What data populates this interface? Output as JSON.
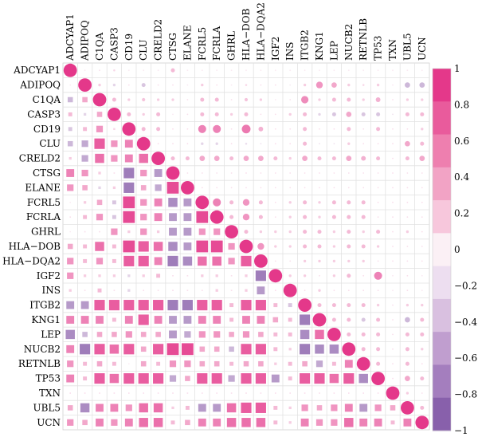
{
  "chart_data": {
    "type": "heatmap",
    "variant": "correlation-matrix",
    "upper_marker": "circle",
    "lower_marker": "square",
    "variables": [
      "ADCYAP1",
      "ADIPOQ",
      "C1QA",
      "CASP3",
      "CD19",
      "CLU",
      "CRELD2",
      "CTSG",
      "ELANE",
      "FCRL5",
      "FCRLA",
      "GHRL",
      "HLA−DOB",
      "HLA−DQA2",
      "IGF2",
      "INS",
      "ITGB2",
      "KNG1",
      "LEP",
      "NUCB2",
      "RETNLB",
      "TP53",
      "TXN",
      "UBL5",
      "UCN"
    ],
    "colorbar": {
      "min": -1,
      "max": 1,
      "ticks": [
        "1",
        "0.8",
        "0.6",
        "0.4",
        "0.2",
        "0",
        "−0.2",
        "−0.4",
        "−0.6",
        "−0.8",
        "−1"
      ],
      "tick_values": [
        1,
        0.8,
        0.6,
        0.4,
        0.2,
        0,
        -0.2,
        -0.4,
        -0.6,
        -0.8,
        -1
      ],
      "bands": [
        "#e4388a",
        "#e95b9c",
        "#ee7faf",
        "#f2a3c5",
        "#f7c7dc",
        "#fbf0f5",
        "#eddef0",
        "#d9c0e0",
        "#c09ecf",
        "#a47ebe",
        "#8860ab"
      ],
      "position": "right"
    },
    "matrix": [
      [
        1,
        0.05,
        0.1,
        0.15,
        0.05,
        0.05,
        0.05,
        0.3,
        0.05,
        0.05,
        0.05,
        0.05,
        0.05,
        0.05,
        0.05,
        0.05,
        0.05,
        0.05,
        0.05,
        0.05,
        0.05,
        0.05,
        0.05,
        0.05,
        0.05
      ],
      [
        0.05,
        1,
        0.2,
        -0.2,
        0.1,
        -0.3,
        0.1,
        0.1,
        0.05,
        0.2,
        0.1,
        0.05,
        0.15,
        0.1,
        0.1,
        -0.05,
        0.2,
        0.5,
        0.4,
        0.2,
        0.15,
        0.2,
        0.05,
        -0.4,
        -0.4
      ],
      [
        -0.4,
        0.4,
        1,
        0.3,
        0.2,
        0.25,
        0.2,
        0.2,
        0.1,
        0.3,
        0.3,
        0.1,
        0.25,
        0.2,
        0.05,
        0.1,
        0.55,
        0.2,
        0.3,
        0.3,
        0.2,
        0.35,
        0.1,
        0.2,
        0.2
      ],
      [
        0.3,
        -0.2,
        0.4,
        1,
        0.3,
        0.2,
        0.3,
        0.05,
        0.1,
        0.3,
        0.3,
        0.2,
        0.3,
        0.1,
        0.1,
        0.2,
        0.3,
        -0.2,
        -0.3,
        0.4,
        -0.3,
        -0.3,
        -0.1,
        0.3,
        0.3
      ],
      [
        -0.3,
        0.3,
        0.5,
        0.15,
        1,
        0.3,
        0.3,
        0.1,
        0.1,
        0.6,
        0.6,
        0.1,
        0.65,
        0.35,
        0.1,
        0.1,
        0.3,
        0.1,
        0.1,
        0.3,
        0.1,
        0.3,
        0.1,
        0.1,
        0.2
      ],
      [
        -0.4,
        -0.5,
        0.8,
        0.5,
        0.6,
        1,
        0.1,
        0.1,
        0.1,
        -0.2,
        -0.2,
        0.1,
        -0.15,
        -0.1,
        0.1,
        0.1,
        0.3,
        -0.1,
        -0.1,
        0.2,
        0.1,
        0.1,
        0.1,
        0.4,
        0.3
      ],
      [
        0.2,
        -0.5,
        0.7,
        0.5,
        0.6,
        0.7,
        1,
        0.3,
        0.3,
        0.4,
        0.4,
        0.3,
        0.4,
        0.4,
        0.3,
        0.2,
        0.4,
        0.3,
        0.3,
        0.4,
        0.35,
        0.3,
        0.1,
        0.3,
        0.4
      ],
      [
        0.6,
        0.5,
        0.2,
        0.1,
        -0.8,
        0.5,
        -0.6,
        1,
        0.1,
        0.1,
        0.1,
        0.1,
        0.1,
        0.1,
        0.1,
        0.1,
        0.1,
        0.1,
        0.1,
        0.1,
        0.1,
        0.1,
        0.1,
        0.1,
        0.1
      ],
      [
        0.5,
        0.4,
        -0.2,
        0.2,
        -0.8,
        0.4,
        -0.5,
        0.9,
        1,
        0.1,
        0.1,
        0.1,
        0.1,
        0.1,
        0.1,
        0.1,
        0.1,
        0.1,
        0.1,
        0.1,
        0.1,
        0.1,
        0.1,
        0.1,
        0.1
      ],
      [
        0.05,
        0.2,
        0.4,
        -0.3,
        0.9,
        0.5,
        0.6,
        -0.7,
        -0.6,
        1,
        0.6,
        0.3,
        0.5,
        0.3,
        0.1,
        0.2,
        0.3,
        0.2,
        0.3,
        0.3,
        0.3,
        0.1,
        0.1,
        0.1,
        0.1
      ],
      [
        0.1,
        0.3,
        0.5,
        -0.3,
        0.9,
        0.5,
        0.6,
        -0.6,
        -0.6,
        0.9,
        1,
        0.3,
        0.5,
        0.3,
        0.1,
        0.2,
        0.3,
        0.2,
        0.3,
        0.3,
        0.3,
        0.1,
        0.1,
        0.1,
        0.1
      ],
      [
        0.05,
        0.1,
        0.1,
        0.5,
        0.2,
        0.5,
        0.2,
        -0.6,
        -0.6,
        0.5,
        0.5,
        1,
        0.3,
        0.2,
        0.2,
        0.2,
        0.3,
        0.3,
        0.2,
        0.3,
        0.2,
        0.3,
        0.1,
        0.2,
        0.1
      ],
      [
        0.4,
        0.3,
        0.7,
        0.3,
        0.9,
        0.8,
        0.7,
        -0.7,
        -0.6,
        0.9,
        0.9,
        0.5,
        1,
        0.5,
        0.2,
        0.2,
        0.3,
        0.3,
        0.2,
        0.3,
        0.3,
        0.2,
        0.1,
        0.1,
        0.1
      ],
      [
        0.5,
        0.3,
        0.5,
        0.3,
        0.8,
        0.8,
        0.6,
        -0.8,
        -0.7,
        0.7,
        0.7,
        0.5,
        0.8,
        1,
        0.1,
        0.1,
        0.2,
        0.2,
        0.2,
        0.2,
        0.2,
        0.1,
        0.1,
        0.1,
        0.1
      ],
      [
        0.5,
        0.2,
        0.2,
        0.2,
        -0.2,
        0.2,
        0.3,
        0.1,
        0.1,
        0.2,
        0.2,
        0.1,
        0.2,
        -0.8,
        1,
        0.2,
        0.2,
        0.1,
        0.2,
        0.3,
        0.1,
        0.6,
        0.05,
        0.1,
        0.05
      ],
      [
        0.2,
        0.1,
        0.3,
        0.1,
        -0.2,
        0.1,
        0.1,
        0.1,
        0.1,
        0.1,
        0.2,
        0.1,
        0.2,
        -0.6,
        0.1,
        1,
        0.1,
        0.2,
        0.1,
        0.1,
        0.1,
        0.1,
        0.05,
        0.1,
        0.05
      ],
      [
        -0.6,
        -0.6,
        0.8,
        0.8,
        0.8,
        0.8,
        0.8,
        -0.8,
        -0.8,
        0.8,
        0.8,
        0.3,
        0.8,
        0.8,
        0.3,
        -0.3,
        1,
        0.3,
        0.3,
        0.3,
        0.3,
        0.2,
        0.1,
        0.2,
        0.2
      ],
      [
        0.6,
        0.6,
        0.6,
        0.3,
        0.6,
        0.8,
        0.6,
        -0.6,
        -0.6,
        0.6,
        0.6,
        0.3,
        0.6,
        0.6,
        0.4,
        0.3,
        -0.8,
        1,
        0.3,
        0.3,
        -0.3,
        0.3,
        0.1,
        -0.4,
        0.3
      ],
      [
        -0.7,
        -0.4,
        0.4,
        0.4,
        0.5,
        0.4,
        0.4,
        -0.6,
        -0.5,
        0.5,
        0.5,
        0.4,
        0.5,
        0.4,
        0.3,
        0.3,
        -0.7,
        0.7,
        1,
        0.3,
        0.3,
        0.3,
        0.1,
        0.3,
        0.3
      ],
      [
        0.6,
        -0.8,
        0.8,
        0.7,
        0.8,
        0.4,
        0.8,
        0.9,
        0.9,
        0.4,
        0.4,
        -0.4,
        0.8,
        0.8,
        0.3,
        0.2,
        -0.8,
        -0.7,
        -0.7,
        1,
        0.3,
        0.3,
        0.1,
        0.3,
        0.2
      ],
      [
        0.5,
        0.3,
        0.4,
        0.3,
        0.05,
        0.4,
        0.3,
        0.5,
        0.5,
        0.4,
        0.4,
        0.3,
        0.4,
        0.4,
        0.2,
        0.3,
        0.4,
        -0.5,
        0.3,
        0.6,
        1,
        0.3,
        0.1,
        0.3,
        0.1
      ],
      [
        0.6,
        0.3,
        0.8,
        0.7,
        0.8,
        0.8,
        0.8,
        -0.5,
        0.4,
        0.8,
        0.8,
        -0.5,
        0.8,
        0.8,
        -0.6,
        0.3,
        0.8,
        0.8,
        0.7,
        0.8,
        -0.7,
        1,
        0.1,
        0.4,
        0.3
      ],
      [
        0.1,
        0.1,
        0.1,
        0.1,
        0.1,
        0.1,
        0.1,
        0.1,
        0.1,
        0.1,
        0.1,
        0.1,
        0.1,
        0.1,
        0.1,
        0.1,
        0.1,
        0.1,
        0.1,
        0.1,
        0.1,
        0.1,
        1,
        0.2,
        0.1
      ],
      [
        0.4,
        -0.7,
        0.6,
        0.6,
        0.5,
        0.7,
        0.7,
        0.2,
        0.3,
        -0.6,
        -0.6,
        0.7,
        0.8,
        0.8,
        0.3,
        0.2,
        0.5,
        0.4,
        0.5,
        0.6,
        -0.6,
        0.5,
        0.4,
        1,
        0.3
      ],
      [
        0.5,
        0.4,
        0.6,
        0.5,
        0.6,
        0.7,
        0.7,
        0.3,
        0.4,
        0.6,
        0.6,
        0.7,
        0.7,
        0.7,
        0.3,
        0.2,
        0.6,
        0.5,
        0.5,
        0.7,
        0.6,
        0.6,
        0.3,
        0.6,
        1
      ]
    ]
  }
}
